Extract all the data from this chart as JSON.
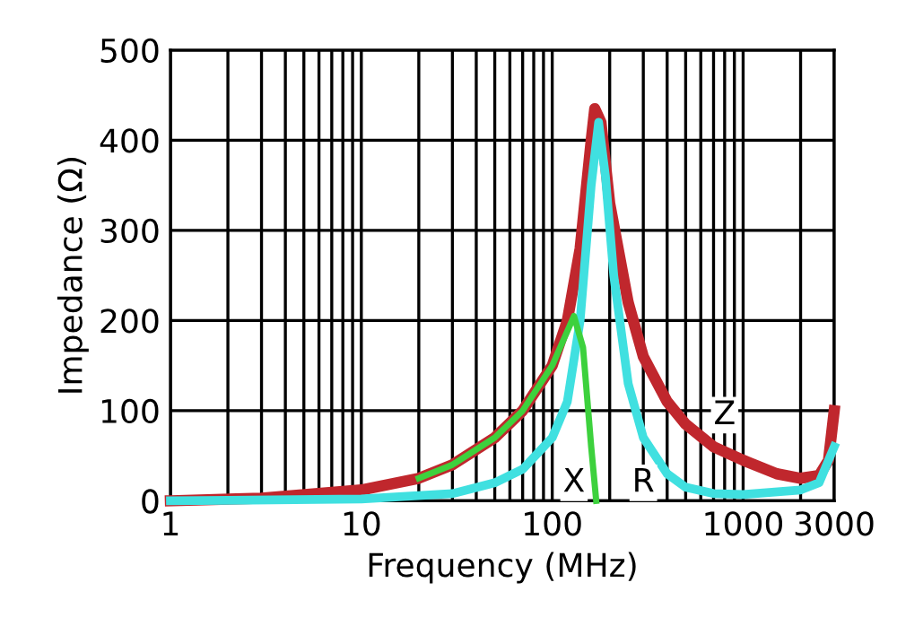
{
  "chart_data": {
    "type": "line",
    "xlabel": "Frequency (MHz)",
    "ylabel": "Impedance (Ω)",
    "log": "x",
    "xlim": [
      1,
      3000
    ],
    "ylim": [
      0,
      500
    ],
    "xticks": [
      1,
      {
        "value": 2,
        "label": null
      },
      {
        "value": 3,
        "label": null
      },
      {
        "value": 4,
        "label": null
      },
      {
        "value": 5,
        "label": null
      },
      {
        "value": 6,
        "label": null
      },
      {
        "value": 7,
        "label": null
      },
      {
        "value": 8,
        "label": null
      },
      {
        "value": 9,
        "label": null
      },
      10,
      {
        "value": 20,
        "label": null
      },
      {
        "value": 30,
        "label": null
      },
      {
        "value": 40,
        "label": null
      },
      {
        "value": 50,
        "label": null
      },
      {
        "value": 60,
        "label": null
      },
      {
        "value": 70,
        "label": null
      },
      {
        "value": 80,
        "label": null
      },
      {
        "value": 90,
        "label": null
      },
      100,
      {
        "value": 200,
        "label": null
      },
      {
        "value": 300,
        "label": null
      },
      {
        "value": 400,
        "label": null
      },
      {
        "value": 500,
        "label": null
      },
      {
        "value": 600,
        "label": null
      },
      {
        "value": 700,
        "label": null
      },
      {
        "value": 800,
        "label": null
      },
      {
        "value": 900,
        "label": null
      },
      1000,
      {
        "value": 2000,
        "label": null
      },
      3000
    ],
    "yticks": [
      0,
      100,
      200,
      300,
      400,
      500
    ],
    "grid": true,
    "line_style": "solid",
    "marker": "none",
    "series": [
      {
        "color": "#c0272d",
        "x": [
          1,
          3,
          10,
          20,
          30,
          50,
          70,
          100,
          120,
          140,
          160,
          167,
          180,
          200,
          250,
          300,
          400,
          500,
          700,
          1000,
          1500,
          2000,
          2500,
          2800,
          3000
        ],
        "values": [
          0,
          3,
          12,
          25,
          40,
          70,
          100,
          150,
          200,
          280,
          400,
          435,
          420,
          330,
          220,
          160,
          110,
          85,
          60,
          45,
          30,
          25,
          28,
          45,
          100
        ]
      },
      {
        "color": "#40e0e0",
        "x": [
          1,
          10,
          30,
          50,
          70,
          100,
          120,
          140,
          160,
          175,
          190,
          210,
          250,
          300,
          400,
          500,
          700,
          1000,
          2000,
          2500,
          3000
        ],
        "values": [
          0,
          2,
          8,
          20,
          35,
          70,
          110,
          200,
          350,
          420,
          360,
          250,
          130,
          70,
          30,
          15,
          8,
          7,
          12,
          20,
          60
        ]
      },
      {
        "color": "#3dd13d",
        "x": [
          20,
          30,
          50,
          70,
          100,
          130,
          145,
          160,
          170
        ],
        "values": [
          25,
          40,
          70,
          100,
          150,
          205,
          170,
          60,
          0
        ]
      }
    ],
    "annotations": [
      {
        "text": "X",
        "x": 130,
        "y": 20
      },
      {
        "text": "R",
        "x": 300,
        "y": 20
      },
      {
        "text": "Z",
        "x": 800,
        "y": 95
      }
    ]
  }
}
